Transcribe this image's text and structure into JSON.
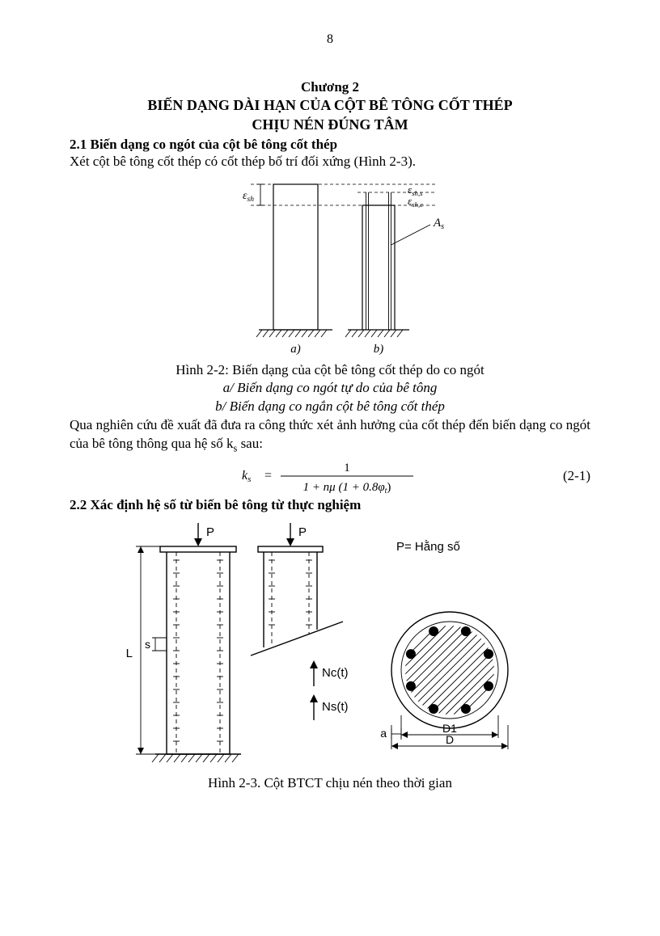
{
  "page_number": "8",
  "chapter": "Chương 2",
  "title_line1": "BIẾN DẠNG DÀI HẠN CỦA CỘT BÊ TÔNG CỐT THÉP",
  "title_line2": "CHỊU NÉN ĐÚNG TÂM",
  "section_21": "2.1  Biến dạng co ngót của cột bê tông cốt thép",
  "intro_21": "Xét cột bê tông cốt thép có cốt thép bố trí đối xứng (Hình 2-3).",
  "section_22": "2.2  Xác định hệ số từ biến bê tông từ thực nghiệm",
  "fig22_caption": "Hình 2-2: Biến dạng của cột bê tông cốt thép do co ngót",
  "fig22_sub_a": "a/ Biến dạng co ngót tự do của bê tông",
  "fig22_sub_b": "b/ Biến dạng co ngắn cột bê tông cốt thép",
  "fig23_caption": "Hình 2-3. Cột BTCT chịu nén theo thời gian",
  "para_after22": "Qua nghiên cứu đề xuất đã đưa ra công thức xét ảnh hưởng của cốt thép đến biến dạng co ngót của bê tông thông qua hệ số k",
  "para_after22_tail": " sau:",
  "eq21_number": "(2-1)",
  "eq21": {
    "lhs": "k",
    "lhs_sub": "s",
    "num": "1",
    "den": "1 + nμ (1 + 0.8φ",
    "den_sub": "t",
    "den_tail": ")"
  },
  "fig22": {
    "labels": {
      "eps_sh": "ε",
      "eps_sh_sub": "sh",
      "eps_shs": "ε",
      "eps_shs_sub": "sh,s",
      "eps_shc": "ε",
      "eps_shc_sub": "sh,c",
      "As": "A",
      "As_sub": "s",
      "a": "a)",
      "b": "b)"
    },
    "colors": {
      "stroke": "#000000",
      "hatch": "#000000",
      "dash": "4,3"
    },
    "line_w": 1.2
  },
  "fig23": {
    "labels": {
      "P": "P",
      "Pnote": "P= Hằng số",
      "L": "L",
      "s": "s",
      "Nc": "Nc(t)",
      "Ns": "Ns(t)",
      "a": "a",
      "D1": "D1",
      "D": "D"
    },
    "colors": {
      "stroke": "#000000",
      "fill": "#000000",
      "hatch": "#000000"
    },
    "line_w": 1.4,
    "thin_w": 0.9,
    "rebar_r": 6,
    "circle_outer_r": 72,
    "circle_inner_r": 60,
    "circle_hatch_r": 55,
    "n_bars": 8
  }
}
